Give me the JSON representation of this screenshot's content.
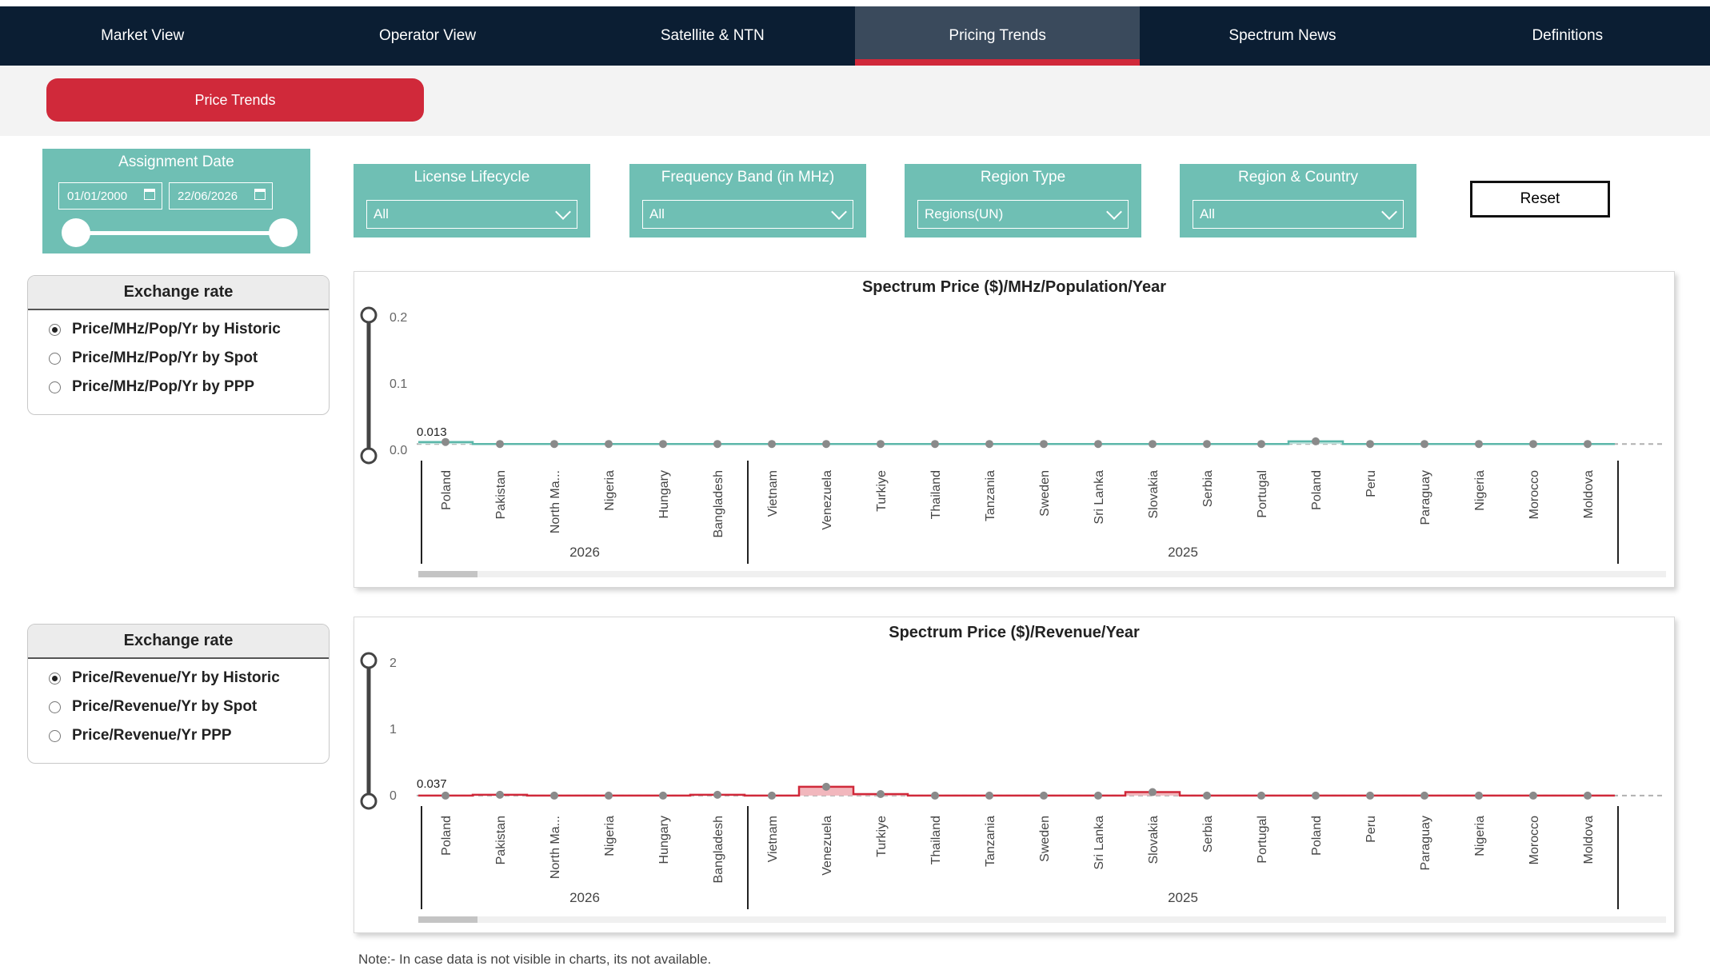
{
  "nav": {
    "tabs": [
      {
        "label": "Market View",
        "active": false
      },
      {
        "label": "Operator View",
        "active": false
      },
      {
        "label": "Satellite & NTN",
        "active": false
      },
      {
        "label": "Pricing Trends",
        "active": true
      },
      {
        "label": "Spectrum News",
        "active": false
      },
      {
        "label": "Definitions",
        "active": false
      }
    ]
  },
  "subnav": {
    "active_label": "Price Trends"
  },
  "assignment_date": {
    "title": "Assignment Date",
    "start": "01/01/2000",
    "end": "22/06/2026"
  },
  "filters": [
    {
      "label": "License Lifecycle",
      "value": "All"
    },
    {
      "label": "Frequency Band (in MHz)",
      "value": "All"
    },
    {
      "label": "Region Type",
      "value": "Regions(UN)"
    },
    {
      "label": "Region & Country",
      "value": "All"
    }
  ],
  "reset_label": "Reset",
  "exchange_rate_1": {
    "title": "Exchange rate",
    "options": [
      {
        "label": "Price/MHz/Pop/Yr by Historic",
        "selected": true
      },
      {
        "label": "Price/MHz/Pop/Yr by Spot",
        "selected": false
      },
      {
        "label": "Price/MHz/Pop/Yr by PPP",
        "selected": false
      }
    ]
  },
  "exchange_rate_2": {
    "title": "Exchange rate",
    "options": [
      {
        "label": "Price/Revenue/Yr by Historic",
        "selected": true
      },
      {
        "label": "Price/Revenue/Yr by Spot",
        "selected": false
      },
      {
        "label": "Price/Revenue/Yr PPP",
        "selected": false
      }
    ]
  },
  "colors": {
    "nav_bg": "#0b1e33",
    "accent_red": "#d0293a",
    "teal": "#6fbfb4",
    "chart1_fill": "#bfe3dd",
    "chart1_line": "#5cb7aa",
    "chart2_fill": "#f2b7bd",
    "chart2_line": "#d0293a"
  },
  "chart_data": [
    {
      "type": "area",
      "title": "Spectrum Price ($)/MHz/Population/Year",
      "yticks": [
        "0.2",
        "0.1",
        "0.0"
      ],
      "ylim": [
        0,
        0.2
      ],
      "reference_label": "0.013",
      "reference_value": 0.013,
      "groups": [
        {
          "label": "2026",
          "categories": [
            "Poland",
            "Pakistan",
            "North Ma...",
            "Nigeria",
            "Hungary",
            "Bangladesh"
          ]
        },
        {
          "label": "2025",
          "categories": [
            "Vietnam",
            "Venezuela",
            "Turkiye",
            "Thailand",
            "Tanzania",
            "Sweden",
            "Sri Lanka",
            "Slovakia",
            "Serbia",
            "Portugal",
            "Poland",
            "Peru",
            "Paraguay",
            "Nigeria",
            "Morocco",
            "Moldova"
          ]
        }
      ],
      "values": [
        0.016,
        0.001,
        0.003,
        0.001,
        0.01,
        0.004,
        0.003,
        0.003,
        0.005,
        0.008,
        0.001,
        0.003,
        0.001,
        0.01,
        0.004,
        0.008,
        0.017,
        0.002,
        0.0005,
        0.0005,
        0.002,
        0.002
      ]
    },
    {
      "type": "area",
      "title": "Spectrum Price ($)/Revenue/Year",
      "yticks": [
        "2",
        "1",
        "0"
      ],
      "ylim": [
        0,
        2
      ],
      "reference_label": "0.037",
      "reference_value": 0.037,
      "groups": [
        {
          "label": "2026",
          "categories": [
            "Poland",
            "Pakistan",
            "North Ma...",
            "Nigeria",
            "Hungary",
            "Bangladesh"
          ]
        },
        {
          "label": "2025",
          "categories": [
            "Vietnam",
            "Venezuela",
            "Turkiye",
            "Thailand",
            "Tanzania",
            "Sweden",
            "Sri Lanka",
            "Slovakia",
            "Serbia",
            "Portugal",
            "Poland",
            "Peru",
            "Paraguay",
            "Nigeria",
            "Morocco",
            "Moldova"
          ]
        }
      ],
      "values": [
        0.01,
        0.05,
        0.01,
        0.0,
        0.01,
        0.05,
        0.01,
        0.17,
        0.06,
        0.02,
        0.01,
        0.0,
        0.01,
        0.09,
        0.02,
        0.0,
        0.01,
        0.01,
        0.0,
        0.0,
        0.01,
        0.01
      ]
    }
  ],
  "note": "Note:- In case data is not visible in charts, its not available."
}
